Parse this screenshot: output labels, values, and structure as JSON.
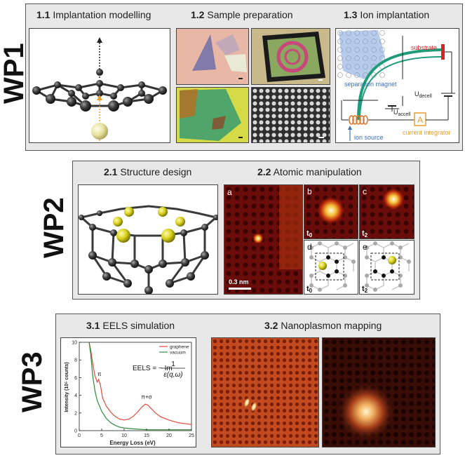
{
  "wp1": {
    "label": "WP1",
    "sections": [
      {
        "num": "1.1",
        "title": "Implantation modelling"
      },
      {
        "num": "1.2",
        "title": "Sample preparation"
      },
      {
        "num": "1.3",
        "title": "Ion implantation"
      }
    ],
    "ion_diagram": {
      "substrate": "substrate",
      "separation_magnet": "separation magnet",
      "u_decell": "U",
      "u_decell_sub": "decell",
      "u_accell": "U",
      "u_accell_sub": "accell",
      "ammeter": "A",
      "current_integrator": "current integrator",
      "ion_source": "ion source"
    }
  },
  "wp2": {
    "label": "WP2",
    "sections": [
      {
        "num": "2.1",
        "title": "Structure design"
      },
      {
        "num": "2.2",
        "title": "Atomic manipulation"
      }
    ],
    "panels": {
      "a": "a",
      "b": "b",
      "c": "c",
      "d": "d",
      "e": "e"
    },
    "time_labels": {
      "t0": "t",
      "t0_sub": "0",
      "t2": "t",
      "t2_sub": "2"
    },
    "scale_bar": "0.3 nm"
  },
  "wp3": {
    "label": "WP3",
    "sections": [
      {
        "num": "3.1",
        "title": "EELS simulation"
      },
      {
        "num": "3.2",
        "title": "Nanoplasmon mapping"
      }
    ],
    "equation": {
      "lhs": "EELS = − Im",
      "num": "1",
      "den": "ε(q,ω)"
    }
  },
  "chart_data": {
    "type": "line",
    "title": "",
    "xlabel": "Energy Loss (eV)",
    "ylabel": "Intensity (10⁵ counts)",
    "xlim": [
      0,
      25
    ],
    "ylim": [
      0,
      1
    ],
    "xticks": [
      0,
      5,
      10,
      15,
      20,
      25
    ],
    "yticks": [
      0.0,
      0.2,
      0.4,
      0.6,
      0.8,
      1.0
    ],
    "ytick_labels": [
      "0",
      "2",
      "4",
      "6",
      "8",
      "10"
    ],
    "legend_position": "top-right",
    "annotations": [
      {
        "text": "π",
        "x": 4.5,
        "y": 0.62
      },
      {
        "text": "π+σ",
        "x": 15,
        "y": 0.36
      }
    ],
    "series": [
      {
        "name": "graphene",
        "color": "#e04a3a",
        "x": [
          2.2,
          2.6,
          3.0,
          3.5,
          4.0,
          4.3,
          4.7,
          5.2,
          6,
          7,
          8,
          9,
          10,
          11,
          12,
          13,
          14,
          14.7,
          15.3,
          16,
          17,
          18,
          20,
          22,
          25
        ],
        "y": [
          1.0,
          0.9,
          0.76,
          0.62,
          0.55,
          0.58,
          0.52,
          0.37,
          0.28,
          0.21,
          0.16,
          0.13,
          0.12,
          0.13,
          0.16,
          0.21,
          0.27,
          0.3,
          0.29,
          0.25,
          0.2,
          0.16,
          0.12,
          0.09,
          0.07
        ]
      },
      {
        "name": "vacuum",
        "color": "#2e8b3a",
        "x": [
          2.2,
          2.6,
          3.0,
          3.5,
          4.0,
          5,
          6,
          7,
          8,
          9,
          10,
          12,
          15,
          20,
          25
        ],
        "y": [
          1.0,
          0.85,
          0.62,
          0.45,
          0.34,
          0.22,
          0.14,
          0.09,
          0.06,
          0.04,
          0.03,
          0.02,
          0.01,
          0.01,
          0.01
        ]
      }
    ]
  }
}
